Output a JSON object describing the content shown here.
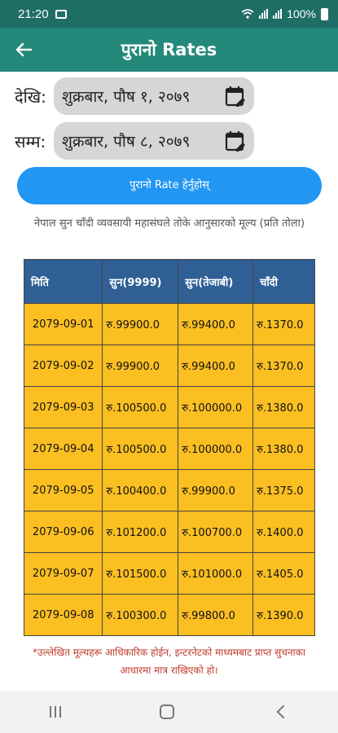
{
  "status_bar": {
    "time": "21:20",
    "battery": "100%"
  },
  "app_bar": {
    "title": "पुरानो Rates"
  },
  "filters": {
    "from_label": "देखि:",
    "from_value": "शुक्रबार, पौष १, २०७९",
    "to_label": "सम्म:",
    "to_value": "शुक्रबार, पौष ८, २०७९"
  },
  "fetch_button": {
    "label": "पुरानो Rate हेर्नुहोस्"
  },
  "note_top": "नेपाल सुन चाँदी व्यवसायी महासंघले तोके आनुसारको मूल्य (प्रति तोला)",
  "table": {
    "headers": [
      "मिति",
      "सुन(9999)",
      "सुन(तेजाबी)",
      "चाँदी"
    ],
    "rows": [
      [
        "2079-09-01",
        "रु.99900.0",
        "रु.99400.0",
        "रु.1370.0"
      ],
      [
        "2079-09-02",
        "रु.99900.0",
        "रु.99400.0",
        "रु.1370.0"
      ],
      [
        "2079-09-03",
        "रु.100500.0",
        "रु.100000.0",
        "रु.1380.0"
      ],
      [
        "2079-09-04",
        "रु.100500.0",
        "रु.100000.0",
        "रु.1380.0"
      ],
      [
        "2079-09-05",
        "रु.100400.0",
        "रु.99900.0",
        "रु.1375.0"
      ],
      [
        "2079-09-06",
        "रु.101200.0",
        "रु.100700.0",
        "रु.1400.0"
      ],
      [
        "2079-09-07",
        "रु.101500.0",
        "रु.101000.0",
        "रु.1405.0"
      ],
      [
        "2079-09-08",
        "रु.100300.0",
        "रु.99800.0",
        "रु.1390.0"
      ]
    ]
  },
  "note_bottom": "*उल्लेखित मूल्यहरू आधिकारिक होईन, इन्टरनेटको माध्यमबाट प्राप्त सुचनाका आधारमा मात्र राखिएको हो।",
  "colors": {
    "app_bar": "#23897a",
    "status_bar": "#1f6e66",
    "button": "#2196f3",
    "table_header": "#2f5f95",
    "table_cell": "#fbbf22",
    "warning_text": "#c0392b"
  }
}
